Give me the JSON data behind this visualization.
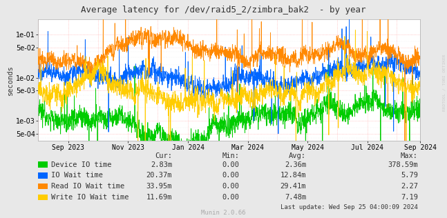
{
  "title": "Average latency for /dev/raid5_2/zimbra_bak2  - by year",
  "ylabel": "seconds",
  "right_label": "RRDTOOL / TOBI OETIKER",
  "background_color": "#e8e8e8",
  "plot_bg_color": "#ffffff",
  "grid_major_color": "#ff9999",
  "grid_minor_color": "#dddddd",
  "series": [
    {
      "name": "Device IO time",
      "color": "#00cc00"
    },
    {
      "name": "IO Wait time",
      "color": "#0066ff"
    },
    {
      "name": "Read IO Wait time",
      "color": "#ff8800"
    },
    {
      "name": "Write IO Wait time",
      "color": "#ffcc00"
    }
  ],
  "legend_cols": [
    "Cur:",
    "Min:",
    "Avg:",
    "Max:"
  ],
  "legend_data": [
    [
      "2.83m",
      "0.00",
      "2.36m",
      "378.59m"
    ],
    [
      "20.37m",
      "0.00",
      "12.84m",
      "5.79"
    ],
    [
      "33.95m",
      "0.00",
      "29.41m",
      "2.27"
    ],
    [
      "11.69m",
      "0.00",
      "7.48m",
      "7.19"
    ]
  ],
  "last_update": "Last update: Wed Sep 25 04:00:09 2024",
  "munin_version": "Munin 2.0.66",
  "ylim_min": 0.00035,
  "ylim_max": 0.22,
  "yticks": [
    0.0005,
    0.001,
    0.005,
    0.01,
    0.05,
    0.1
  ],
  "ytick_labels": [
    "5e-04",
    "1e-03",
    "5e-03",
    "1e-02",
    "5e-02",
    "1e-01"
  ],
  "seed": 42,
  "n_points": 2000,
  "series_bases": [
    0.002,
    0.012,
    0.03,
    0.007
  ],
  "series_noises": [
    0.55,
    0.45,
    0.45,
    0.55
  ],
  "series_seeds": [
    0,
    1,
    2,
    3
  ]
}
